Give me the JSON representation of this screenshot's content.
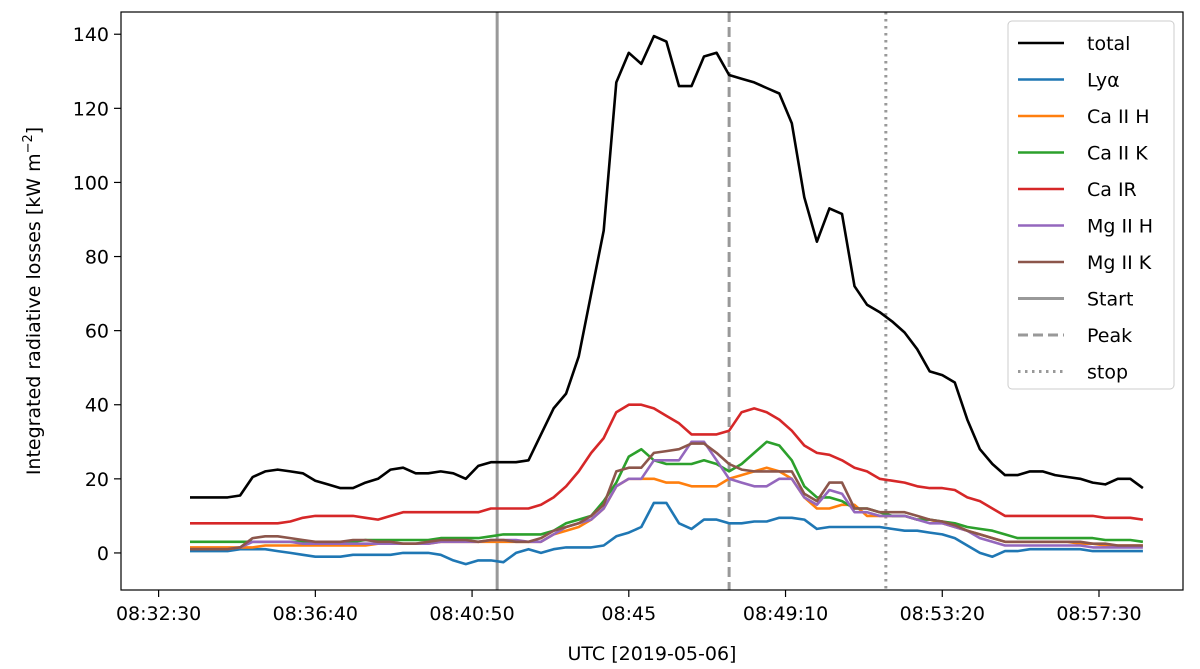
{
  "chart_data": {
    "type": "line",
    "title": "",
    "xlabel": "UTC [2019-05-06]",
    "ylabel": "Integrated radiative losses [kW m",
    "ylabel_sup": "−2",
    "ylabel_end": "]",
    "xlim": [
      "08:31:30",
      "08:59:44"
    ],
    "ylim": [
      -10,
      146
    ],
    "x_ticks": [
      "08:32:30",
      "08:36:40",
      "08:40:50",
      "08:45",
      "08:49:10",
      "08:53:20",
      "08:57:30"
    ],
    "y_ticks": [
      0,
      20,
      40,
      60,
      80,
      100,
      120,
      140
    ],
    "legend": {
      "position": "top-right"
    },
    "grid": false,
    "x": [
      "08:33:20",
      "08:33:40",
      "08:34:00",
      "08:34:20",
      "08:34:40",
      "08:35:00",
      "08:35:20",
      "08:35:40",
      "08:36:00",
      "08:36:20",
      "08:36:40",
      "08:37:00",
      "08:37:20",
      "08:37:40",
      "08:38:00",
      "08:38:20",
      "08:38:40",
      "08:39:00",
      "08:39:20",
      "08:39:40",
      "08:40:00",
      "08:40:20",
      "08:40:40",
      "08:41:00",
      "08:41:20",
      "08:41:40",
      "08:42:00",
      "08:42:20",
      "08:42:40",
      "08:43:00",
      "08:43:20",
      "08:43:40",
      "08:44:00",
      "08:44:20",
      "08:44:40",
      "08:45:00",
      "08:45:20",
      "08:45:40",
      "08:46:00",
      "08:46:20",
      "08:46:40",
      "08:47:00",
      "08:47:20",
      "08:47:40",
      "08:48:00",
      "08:48:20",
      "08:48:40",
      "08:49:00",
      "08:49:20",
      "08:49:40",
      "08:50:00",
      "08:50:20",
      "08:50:40",
      "08:51:00",
      "08:51:20",
      "08:51:40",
      "08:52:00",
      "08:52:20",
      "08:52:40",
      "08:53:00",
      "08:53:20",
      "08:53:40",
      "08:54:00",
      "08:54:20",
      "08:54:40",
      "08:55:00",
      "08:55:20",
      "08:55:40",
      "08:56:00",
      "08:56:20",
      "08:56:40",
      "08:57:00",
      "08:57:20",
      "08:57:40",
      "08:58:00",
      "08:58:20",
      "08:58:40"
    ],
    "series": [
      {
        "name": "total",
        "color": "#000000",
        "style": "solid",
        "values": [
          15,
          15,
          15,
          15,
          15.5,
          20.5,
          22,
          22.5,
          22,
          21.5,
          19.5,
          18.5,
          17.5,
          17.5,
          19,
          20,
          22.5,
          23,
          21.5,
          21.5,
          22,
          21.5,
          20,
          23.5,
          24.5,
          24.5,
          24.5,
          25,
          32,
          39,
          43,
          53,
          70,
          87,
          127,
          135,
          132,
          139.5,
          138,
          126,
          126,
          134,
          135,
          129,
          128,
          127,
          125.5,
          124,
          116,
          96,
          84,
          93,
          91.5,
          72,
          67,
          65,
          62.5,
          59.5,
          55,
          49,
          48,
          46,
          36,
          28,
          24,
          21,
          21,
          22,
          22,
          21,
          20.5,
          20,
          19,
          18.5,
          20,
          20,
          17.5
        ]
      },
      {
        "name": "Lyα",
        "color": "#1f77b4",
        "style": "solid",
        "values": [
          0.5,
          0.5,
          0.5,
          0.5,
          1,
          1,
          1,
          0.5,
          0,
          -0.5,
          -1,
          -1,
          -1,
          -0.5,
          -0.5,
          -0.5,
          -0.5,
          0,
          0,
          0,
          -0.5,
          -2,
          -3,
          -2,
          -2,
          -2.5,
          0,
          1,
          0,
          1,
          1.5,
          1.5,
          1.5,
          2,
          4.5,
          5.5,
          7,
          13.5,
          13.5,
          8,
          6.5,
          9,
          9,
          8,
          8,
          8.5,
          8.5,
          9.5,
          9.5,
          9,
          6.5,
          7,
          7,
          7,
          7,
          7,
          6.5,
          6,
          6,
          5.5,
          5,
          4,
          2,
          0,
          -1,
          0.5,
          0.5,
          1,
          1,
          1,
          1,
          1,
          0.5,
          0.5,
          0.5,
          0.5,
          0.5
        ]
      },
      {
        "name": "Ca II H",
        "color": "#ff7f0e",
        "style": "solid",
        "values": [
          1.5,
          1.5,
          1.5,
          1.5,
          1.5,
          1.5,
          2,
          2,
          2,
          2,
          2,
          2,
          2,
          2,
          2,
          2.5,
          2.5,
          2.5,
          2.5,
          2.5,
          3,
          3,
          3,
          3,
          3,
          3,
          3,
          3,
          3,
          5,
          6,
          7,
          9,
          12,
          18,
          20,
          20,
          20,
          19,
          19,
          18,
          18,
          18,
          20,
          21,
          22,
          23,
          22,
          20,
          15,
          12,
          12,
          13,
          13,
          10,
          10,
          10,
          10,
          9,
          9,
          8,
          7,
          6,
          5,
          4,
          3,
          3,
          3,
          3,
          3,
          3,
          2.5,
          2.5,
          2,
          2,
          2,
          2
        ]
      },
      {
        "name": "Ca II K",
        "color": "#2ca02c",
        "style": "solid",
        "values": [
          3,
          3,
          3,
          3,
          3,
          3,
          3,
          3,
          3,
          3,
          3,
          3,
          3,
          3,
          3.5,
          3.5,
          3.5,
          3.5,
          3.5,
          3.5,
          4,
          4,
          4,
          4,
          4.5,
          5,
          5,
          5,
          5,
          6,
          8,
          9,
          10,
          14,
          19,
          26,
          28,
          25,
          24,
          24,
          24,
          25,
          24,
          22,
          24,
          27,
          30,
          29,
          25,
          18,
          15,
          15,
          14,
          12,
          12,
          11,
          10,
          10,
          9,
          9,
          8.5,
          8,
          7,
          6.5,
          6,
          5,
          4,
          4,
          4,
          4,
          4,
          4,
          4,
          3.5,
          3.5,
          3.5,
          3
        ]
      },
      {
        "name": "Ca IR",
        "color": "#d62728",
        "style": "solid",
        "values": [
          8,
          8,
          8,
          8,
          8,
          8,
          8,
          8,
          8.5,
          9.5,
          10,
          10,
          10,
          10,
          9.5,
          9,
          10,
          11,
          11,
          11,
          11,
          11,
          11,
          11,
          12,
          12,
          12,
          12,
          13,
          15,
          18,
          22,
          27,
          31,
          38,
          40,
          40,
          39,
          37,
          35,
          32,
          32,
          32,
          33,
          38,
          39,
          38,
          36,
          33,
          29,
          27,
          26.5,
          25,
          23,
          22,
          20,
          19.5,
          19,
          18,
          17.5,
          17.5,
          17,
          15,
          14,
          12,
          10,
          10,
          10,
          10,
          10,
          10,
          10,
          10,
          9.5,
          9.5,
          9.5,
          9
        ]
      },
      {
        "name": "Mg II H",
        "color": "#9467bd",
        "style": "solid",
        "values": [
          1,
          1,
          1,
          1,
          1.5,
          3,
          3,
          3,
          3,
          2.5,
          2.5,
          2.5,
          2.5,
          2.5,
          2.5,
          2.5,
          2.5,
          2.5,
          2.5,
          2.5,
          3,
          3,
          3,
          3,
          3.5,
          3.5,
          3.5,
          3,
          3,
          5,
          7,
          8,
          9,
          12,
          18,
          20,
          20,
          25,
          25,
          25,
          30,
          30,
          25,
          20,
          19,
          18,
          18,
          20,
          20,
          15,
          13,
          17,
          16,
          11,
          11,
          10,
          10,
          10,
          9,
          8,
          8,
          7,
          6,
          4,
          3,
          2,
          2,
          2,
          2,
          2,
          2,
          2,
          1.5,
          1.5,
          1.5,
          1.5,
          1.5
        ]
      },
      {
        "name": "Mg II K",
        "color": "#8c564b",
        "style": "solid",
        "values": [
          1,
          1,
          1,
          1,
          1.5,
          4,
          4.5,
          4.5,
          4,
          3.5,
          3,
          3,
          3,
          3.5,
          3.5,
          3,
          3,
          2.5,
          2.5,
          3,
          3.5,
          3.5,
          3.5,
          3,
          3.5,
          3.5,
          3,
          3,
          4,
          6,
          7,
          8,
          10,
          13,
          22,
          23,
          23,
          27,
          27.5,
          28,
          29.5,
          29.5,
          27,
          24,
          22.5,
          22,
          22,
          22,
          22,
          16,
          14,
          19,
          19,
          12,
          12,
          11,
          11,
          11,
          10,
          9,
          8.5,
          7.5,
          6,
          5,
          4,
          3,
          3,
          3,
          3,
          3,
          3,
          3,
          2.5,
          2.5,
          2,
          2,
          2
        ]
      }
    ],
    "vlines": [
      {
        "name": "Start",
        "x": "08:41:30",
        "color": "#999999",
        "style": "solid"
      },
      {
        "name": "Peak",
        "x": "08:47:40",
        "color": "#999999",
        "style": "dashed"
      },
      {
        "name": "stop",
        "x": "08:51:50",
        "color": "#999999",
        "style": "dotted"
      }
    ]
  }
}
